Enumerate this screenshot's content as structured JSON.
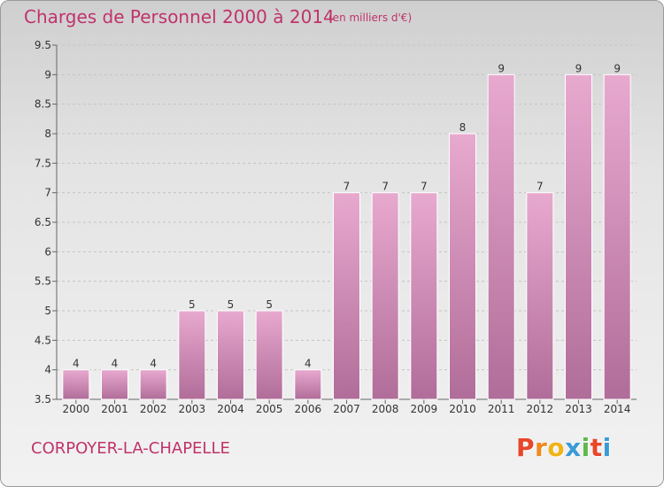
{
  "title": "Charges de Personnel 2000 à 2014",
  "subtitle": "(en milliers d'€)",
  "commune": "CORPOYER-LA-CHAPELLE",
  "logo": {
    "letters": [
      "P",
      "r",
      "o",
      "x",
      "i",
      "t",
      "i"
    ],
    "colors": [
      "#e8462a",
      "#f08a1e",
      "#f0b41a",
      "#3b9bd5",
      "#5fb84a",
      "#e8462a",
      "#3b9bd5"
    ]
  },
  "colors": {
    "accent": "#c0336b",
    "bar_top": "#e8a9cf",
    "bar_bottom": "#b06d99"
  },
  "chart_data": {
    "type": "bar",
    "title": "Charges de Personnel 2000 à 2014",
    "subtitle": "(en milliers d'€)",
    "categories": [
      "2000",
      "2001",
      "2002",
      "2003",
      "2004",
      "2005",
      "2006",
      "2007",
      "2008",
      "2009",
      "2010",
      "2011",
      "2012",
      "2013",
      "2014"
    ],
    "values": [
      4,
      4,
      4,
      5,
      5,
      5,
      4,
      7,
      7,
      7,
      8,
      9,
      7,
      9,
      9
    ],
    "ylim": [
      3.5,
      9.5
    ],
    "yticks": [
      "3.5",
      "4",
      "4.5",
      "5",
      "5.5",
      "6",
      "6.5",
      "7",
      "7.5",
      "8",
      "8.5",
      "9",
      "9.5"
    ],
    "grid": true,
    "xlabel": "",
    "ylabel": ""
  }
}
